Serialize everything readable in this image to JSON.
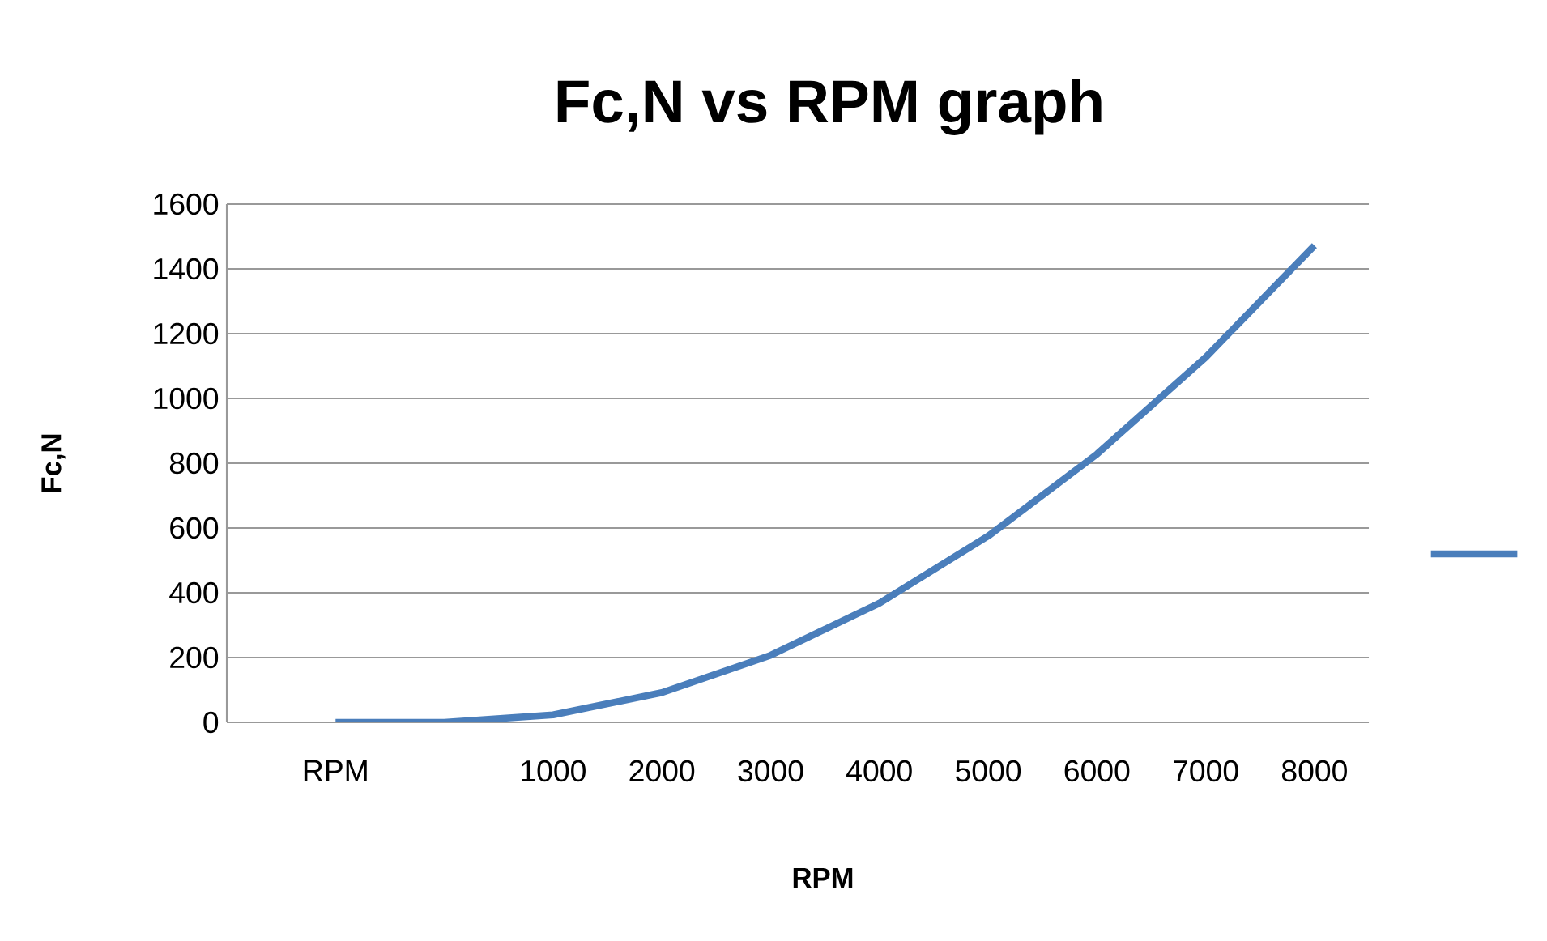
{
  "chart_data": {
    "type": "line",
    "title": "Fc,N vs RPM graph",
    "xlabel": "RPM",
    "ylabel": "Fc,N",
    "categories": [
      "RPM",
      null,
      "1000",
      "2000",
      "3000",
      "4000",
      "5000",
      "6000",
      "7000",
      "8000"
    ],
    "series": [
      {
        "color": "#4a7ebb",
        "values": [
          0,
          0,
          23,
          92,
          207,
          368,
          575,
          828,
          1127,
          1472
        ]
      }
    ],
    "ylim": [
      0,
      1600
    ],
    "yticks": [
      0,
      200,
      400,
      600,
      800,
      1000,
      1200,
      1400,
      1600
    ],
    "grid": "y",
    "marker": "none",
    "line_style": "solid"
  }
}
